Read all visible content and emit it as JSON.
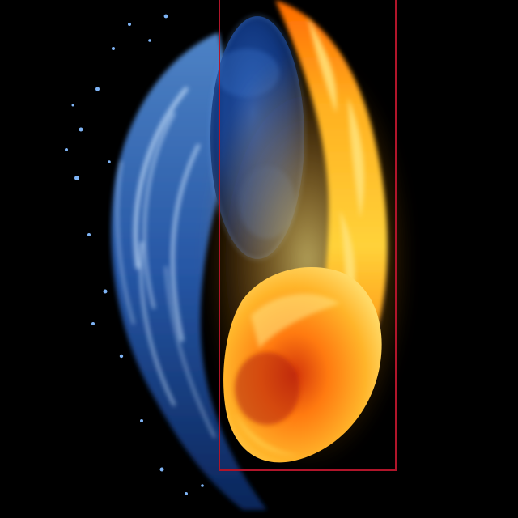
{
  "image": {
    "subject": "water-and-fire-yin-yang",
    "colors": {
      "background": "#000000",
      "water_light": "#cfe6ff",
      "water_mid": "#3f7fd6",
      "water_dark": "#0b2a66",
      "fire_light": "#fff2a6",
      "fire_mid": "#ff9d12",
      "fire_dark": "#c42a05",
      "selection_box": "#b0152a"
    }
  }
}
